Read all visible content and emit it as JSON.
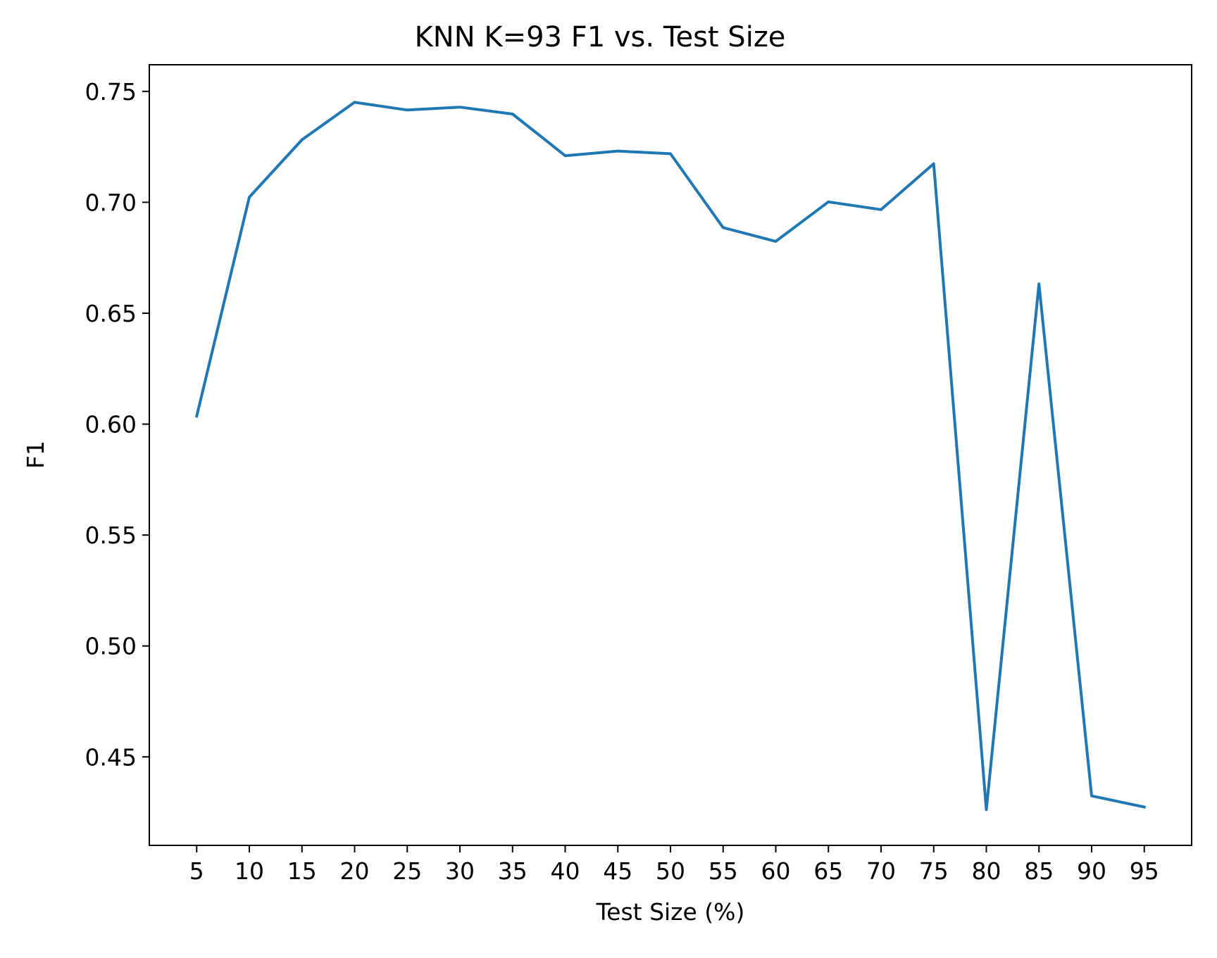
{
  "chart_data": {
    "type": "line",
    "title": "KNN K=93  F1 vs. Test Size",
    "xlabel": "Test Size (%)",
    "ylabel": "F1",
    "x": [
      5,
      10,
      15,
      20,
      25,
      30,
      35,
      40,
      45,
      50,
      55,
      60,
      65,
      70,
      75,
      80,
      85,
      90,
      95
    ],
    "xticks": [
      "5",
      "10",
      "15",
      "20",
      "25",
      "30",
      "35",
      "40",
      "45",
      "50",
      "55",
      "60",
      "65",
      "70",
      "75",
      "80",
      "85",
      "90",
      "95"
    ],
    "yticks": [
      "0.45",
      "0.50",
      "0.55",
      "0.60",
      "0.65",
      "0.70",
      "0.75"
    ],
    "series": [
      {
        "values": [
          0.6036,
          0.7023,
          0.7282,
          0.7451,
          0.7416,
          0.7429,
          0.7398,
          0.721,
          0.7231,
          0.7219,
          0.6886,
          0.6824,
          0.7002,
          0.6967,
          0.7174,
          0.4262,
          0.6632,
          0.4324,
          0.4274
        ],
        "color": "#1f77b4"
      }
    ],
    "xlim": [
      0.5,
      99.5
    ],
    "ylim": [
      0.4101,
      0.762
    ],
    "grid": false,
    "legend": "none"
  }
}
